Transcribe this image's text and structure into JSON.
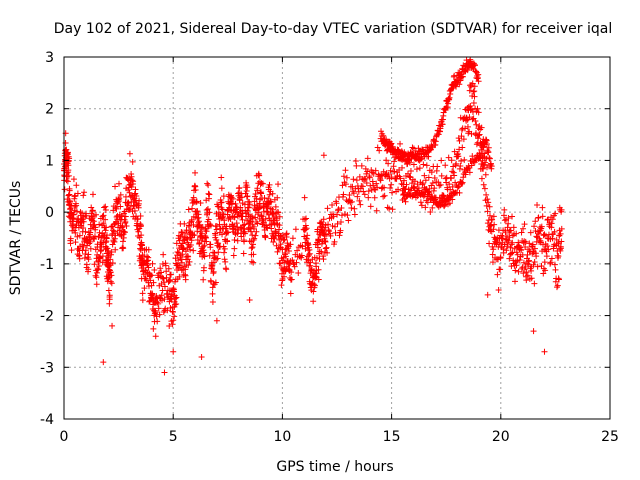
{
  "chart_data": {
    "type": "scatter",
    "title": "Day 102 of 2021, Sidereal Day-to-day VTEC variation (SDTVAR) for receiver iqal",
    "xlabel": "GPS time / hours",
    "ylabel": "SDTVAR / TECUs",
    "xlim": [
      0,
      25
    ],
    "ylim": [
      -4,
      3
    ],
    "xticks": [
      0,
      5,
      10,
      15,
      20,
      25
    ],
    "yticks": [
      -4,
      -3,
      -2,
      -1,
      0,
      1,
      2,
      3
    ],
    "xtick_labels": [
      "0",
      "5",
      "10",
      "15",
      "20",
      "25"
    ],
    "ytick_labels": [
      "-4",
      "-3",
      "-2",
      "-1",
      "0",
      "1",
      "2",
      "3"
    ],
    "grid": true,
    "marker": "+",
    "color": "#ff0000",
    "series": [
      {
        "name": "SDTVAR",
        "trace": [
          [
            0.0,
            0.7
          ],
          [
            0.1,
            1.2
          ],
          [
            0.2,
            0.8
          ],
          [
            0.3,
            -0.2
          ],
          [
            0.5,
            0.1
          ],
          [
            0.7,
            -0.5
          ],
          [
            0.9,
            -0.3
          ],
          [
            1.1,
            -0.8
          ],
          [
            1.3,
            0.1
          ],
          [
            1.5,
            -0.9
          ],
          [
            1.7,
            -0.6
          ],
          [
            1.9,
            -0.4
          ],
          [
            2.0,
            -1.0
          ],
          [
            2.1,
            -1.4
          ],
          [
            2.3,
            -0.2
          ],
          [
            2.5,
            0.1
          ],
          [
            2.7,
            -0.5
          ],
          [
            2.9,
            0.5
          ],
          [
            3.1,
            0.6
          ],
          [
            3.3,
            0.1
          ],
          [
            3.5,
            -0.5
          ],
          [
            3.6,
            -1.2
          ],
          [
            3.8,
            -1.0
          ],
          [
            4.0,
            -1.6
          ],
          [
            4.2,
            -1.8
          ],
          [
            4.5,
            -1.3
          ],
          [
            4.8,
            -1.6
          ],
          [
            5.0,
            -1.8
          ],
          [
            5.2,
            -1.0
          ],
          [
            5.4,
            -0.6
          ],
          [
            5.6,
            -0.7
          ],
          [
            5.8,
            -0.4
          ],
          [
            6.0,
            0.3
          ],
          [
            6.2,
            -0.3
          ],
          [
            6.4,
            -0.8
          ],
          [
            6.6,
            0.0
          ],
          [
            6.8,
            -1.2
          ],
          [
            7.0,
            -0.5
          ],
          [
            7.2,
            0.0
          ],
          [
            7.4,
            -0.6
          ],
          [
            7.6,
            0.3
          ],
          [
            7.8,
            -0.4
          ],
          [
            8.0,
            0.2
          ],
          [
            8.2,
            -0.2
          ],
          [
            8.4,
            0.3
          ],
          [
            8.6,
            -0.5
          ],
          [
            8.8,
            0.1
          ],
          [
            9.0,
            0.4
          ],
          [
            9.2,
            -0.2
          ],
          [
            9.4,
            0.3
          ],
          [
            9.6,
            -0.4
          ],
          [
            9.8,
            -0.1
          ],
          [
            10.0,
            -1.0
          ],
          [
            10.2,
            -0.7
          ],
          [
            10.4,
            -1.2
          ],
          [
            11.0,
            -0.2
          ],
          [
            11.2,
            -0.9
          ],
          [
            11.4,
            -1.5
          ],
          [
            11.6,
            -0.8
          ],
          [
            11.8,
            -0.6
          ],
          [
            12.0,
            -0.5
          ],
          [
            12.5,
            -0.1
          ],
          [
            13.0,
            0.3
          ],
          [
            13.5,
            0.5
          ],
          [
            14.0,
            0.7
          ],
          [
            14.5,
            0.5
          ],
          [
            15.0,
            0.7
          ],
          [
            15.5,
            0.7
          ],
          [
            16.0,
            0.8
          ],
          [
            16.5,
            0.6
          ],
          [
            17.0,
            0.3
          ],
          [
            17.5,
            0.5
          ],
          [
            18.0,
            1.0
          ],
          [
            18.4,
            1.8
          ],
          [
            18.7,
            2.2
          ],
          [
            19.0,
            1.5
          ],
          [
            19.3,
            0.5
          ],
          [
            19.6,
            -0.4
          ],
          [
            19.9,
            -0.9
          ],
          [
            20.2,
            -0.3
          ],
          [
            20.5,
            -0.5
          ],
          [
            20.8,
            -0.9
          ],
          [
            21.1,
            -0.7
          ],
          [
            21.4,
            -1.1
          ],
          [
            21.7,
            -0.4
          ],
          [
            22.0,
            -0.8
          ],
          [
            22.3,
            -0.3
          ],
          [
            22.6,
            -0.9
          ],
          [
            22.8,
            -0.2
          ]
        ],
        "segment_14_20_upper": [
          [
            14.5,
            1.5
          ],
          [
            14.8,
            1.3
          ],
          [
            15.0,
            1.2
          ],
          [
            15.3,
            1.1
          ],
          [
            15.6,
            1.1
          ],
          [
            16.0,
            1.1
          ],
          [
            16.4,
            1.1
          ],
          [
            16.8,
            1.2
          ],
          [
            17.2,
            1.6
          ],
          [
            17.5,
            2.1
          ],
          [
            17.8,
            2.5
          ],
          [
            18.1,
            2.6
          ],
          [
            18.4,
            2.8
          ],
          [
            18.7,
            2.9
          ],
          [
            19.0,
            2.6
          ]
        ],
        "segment_15_20_lower": [
          [
            15.5,
            0.3
          ],
          [
            16.0,
            0.4
          ],
          [
            16.5,
            0.4
          ],
          [
            17.0,
            0.2
          ],
          [
            17.5,
            0.2
          ],
          [
            18.0,
            0.4
          ],
          [
            18.5,
            0.9
          ],
          [
            19.0,
            1.1
          ],
          [
            19.3,
            1.4
          ],
          [
            19.6,
            0.8
          ]
        ],
        "outliers": [
          [
            1.8,
            -2.9
          ],
          [
            4.6,
            -3.1
          ],
          [
            5.0,
            -2.7
          ],
          [
            6.3,
            -2.8
          ],
          [
            7.0,
            -2.1
          ],
          [
            8.5,
            -1.7
          ],
          [
            11.9,
            1.1
          ],
          [
            22.0,
            -2.7
          ],
          [
            21.5,
            -2.3
          ],
          [
            19.4,
            -1.6
          ],
          [
            4.2,
            -2.4
          ],
          [
            2.2,
            -2.2
          ]
        ]
      }
    ]
  }
}
